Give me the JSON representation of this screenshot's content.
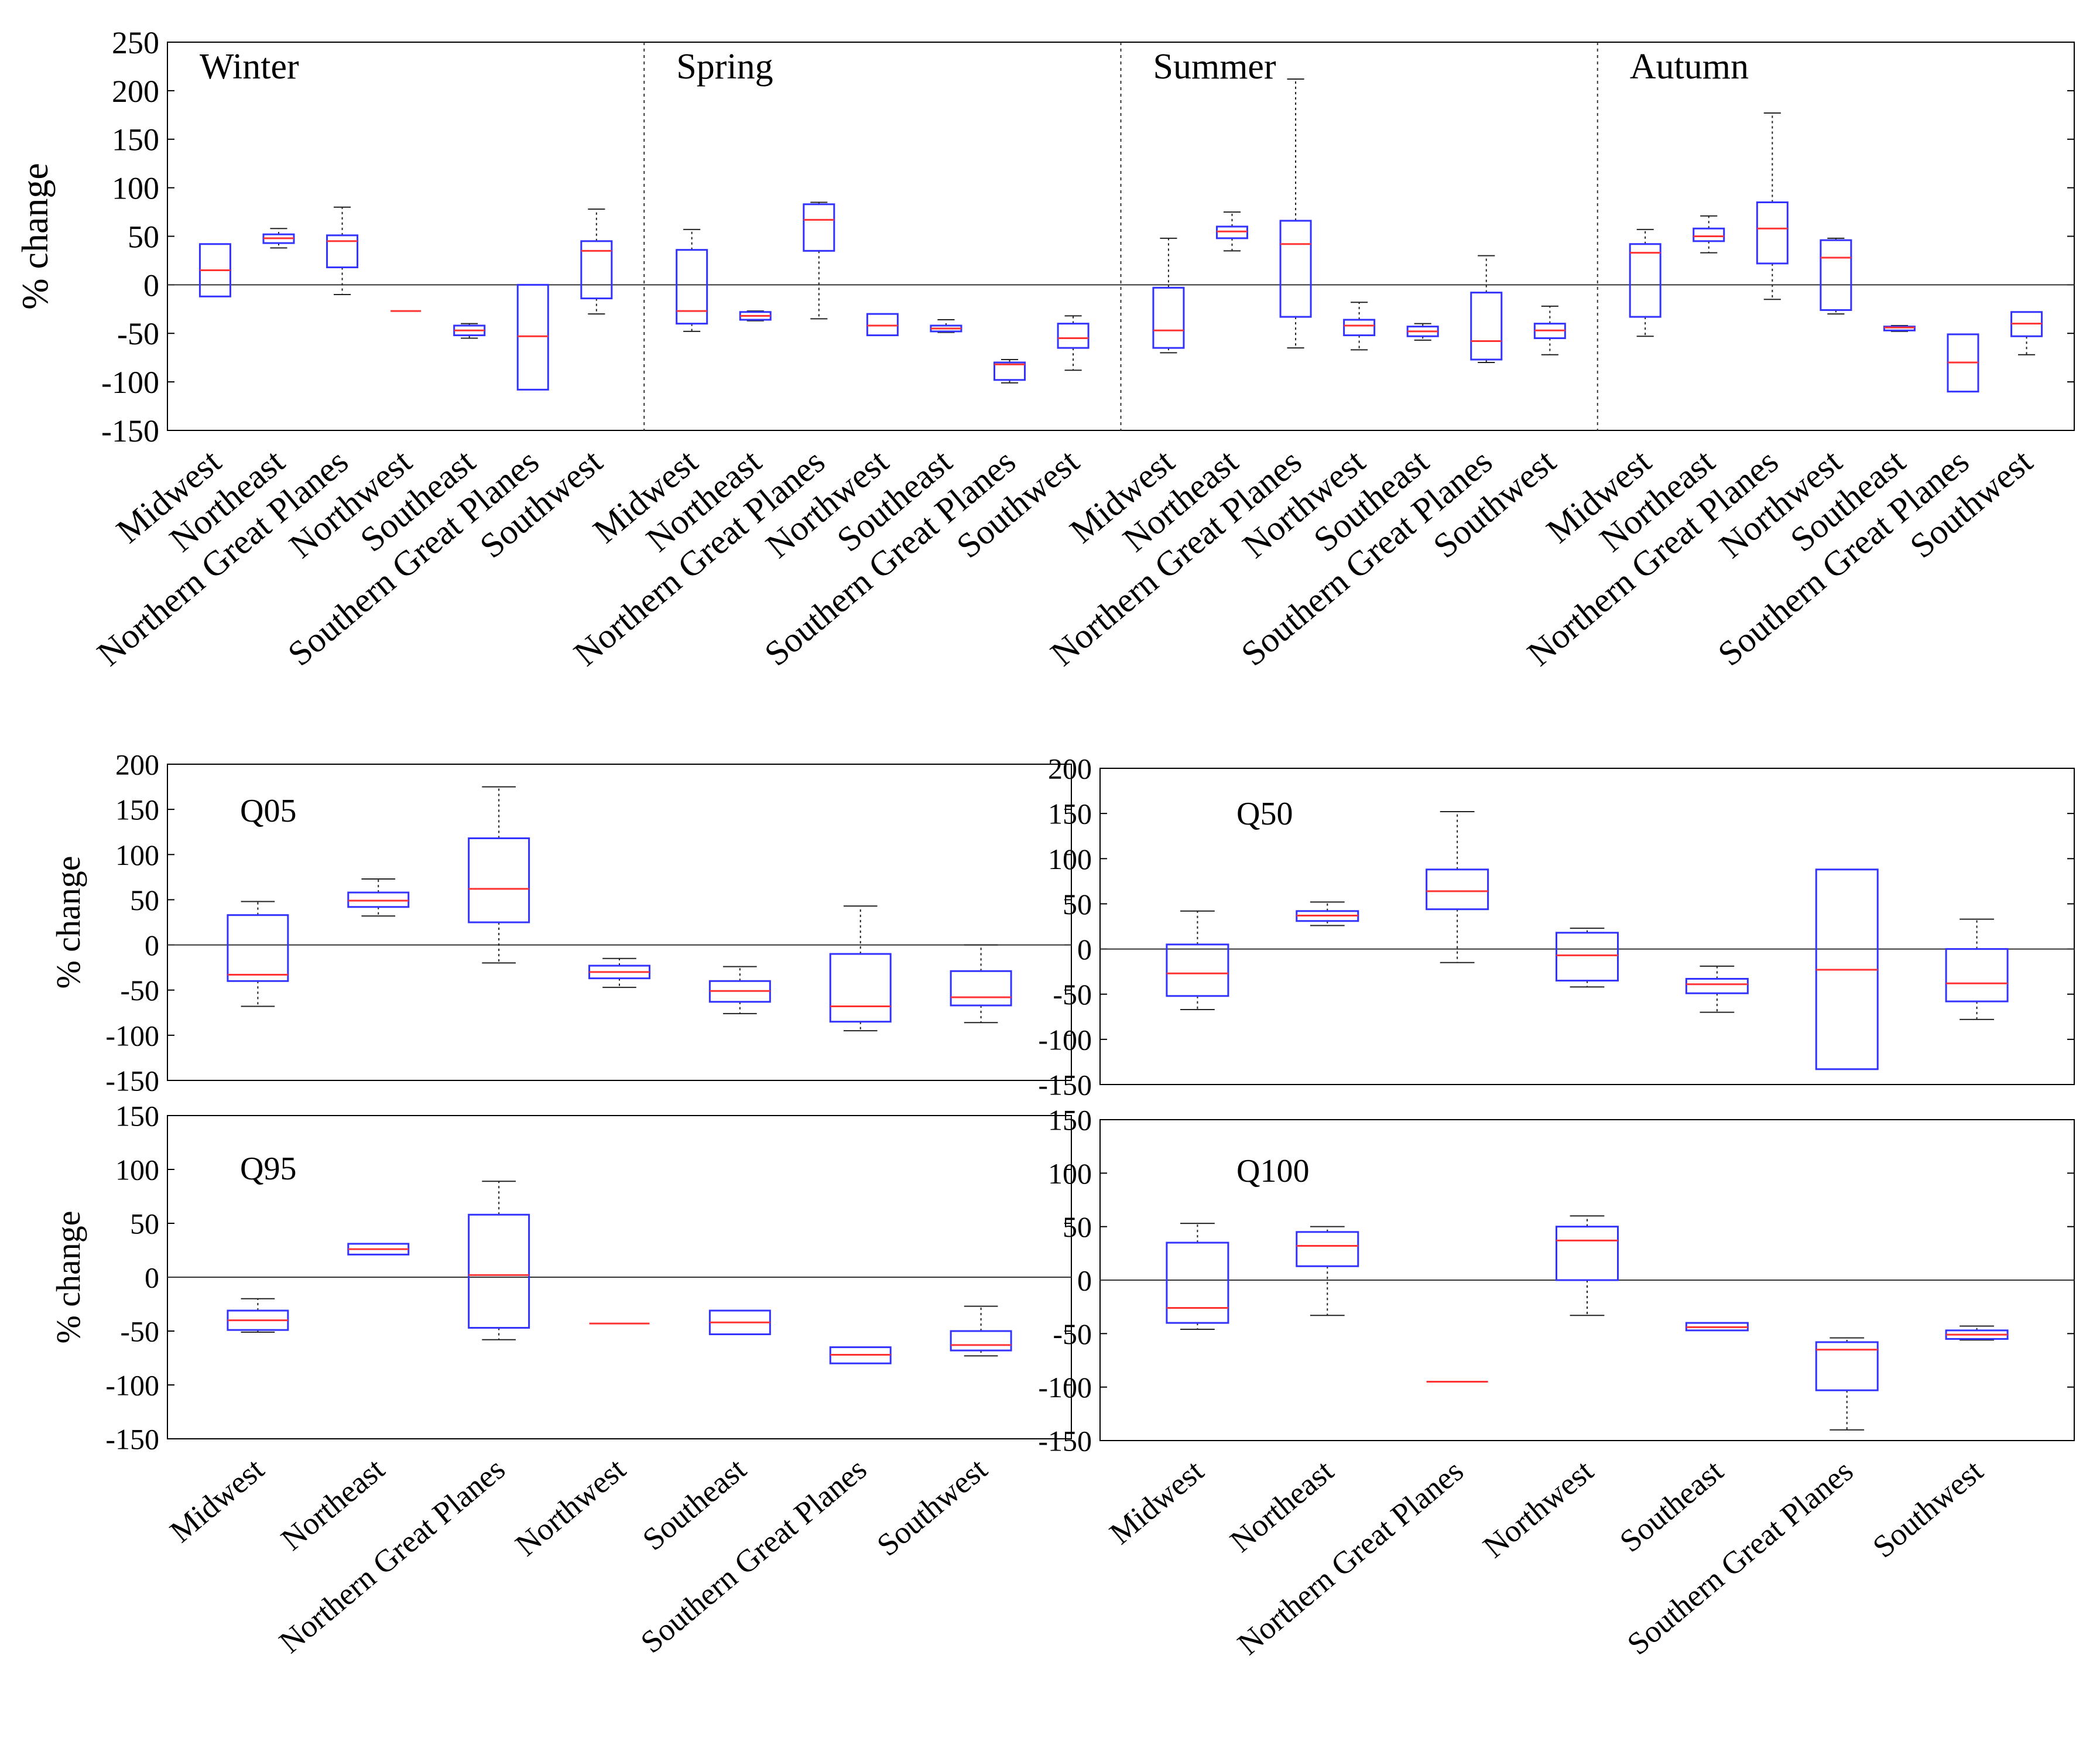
{
  "colors": {
    "box": "#3333ff",
    "median": "#ff3333",
    "whisker": "#222222",
    "axis": "#000000"
  },
  "chart_data": [
    {
      "id": "seasonal",
      "type": "boxplot",
      "ylabel": "% change",
      "ylim": [
        -150,
        250
      ],
      "yticks": [
        250,
        200,
        150,
        100,
        50,
        0,
        -50,
        -100,
        -150
      ],
      "zero_line": true,
      "groups": [
        {
          "name": "Winter",
          "regions": [
            {
              "category": "Midwest",
              "whisker_low": null,
              "q1": -12,
              "median": 15,
              "q3": 42,
              "whisker_high": null
            },
            {
              "category": "Northeast",
              "whisker_low": 38,
              "q1": 43,
              "median": 48,
              "q3": 52,
              "whisker_high": 58
            },
            {
              "category": "Northern Great Planes",
              "whisker_low": -10,
              "q1": 18,
              "median": 45,
              "q3": 51,
              "whisker_high": 80
            },
            {
              "category": "Northwest",
              "whisker_low": null,
              "q1": null,
              "median": -27,
              "q3": null,
              "whisker_high": null
            },
            {
              "category": "Southeast",
              "whisker_low": -55,
              "q1": -52,
              "median": -47,
              "q3": -42,
              "whisker_high": -40
            },
            {
              "category": "Southern Great Planes",
              "whisker_low": null,
              "q1": -108,
              "median": -53,
              "q3": 0,
              "whisker_high": null
            },
            {
              "category": "Southwest",
              "whisker_low": -30,
              "q1": -14,
              "median": 35,
              "q3": 45,
              "whisker_high": 78
            }
          ]
        },
        {
          "name": "Spring",
          "regions": [
            {
              "category": "Midwest",
              "whisker_low": -48,
              "q1": -40,
              "median": -27,
              "q3": 36,
              "whisker_high": 57
            },
            {
              "category": "Northeast",
              "whisker_low": -37,
              "q1": -36,
              "median": -32,
              "q3": -28,
              "whisker_high": -27
            },
            {
              "category": "Northern Great Planes",
              "whisker_low": -35,
              "q1": 35,
              "median": 67,
              "q3": 83,
              "whisker_high": 85
            },
            {
              "category": "Northwest",
              "whisker_low": null,
              "q1": -52,
              "median": -42,
              "q3": -30,
              "whisker_high": null
            },
            {
              "category": "Southeast",
              "whisker_low": -49,
              "q1": -48,
              "median": -45,
              "q3": -42,
              "whisker_high": -36
            },
            {
              "category": "Southern Great Planes",
              "whisker_low": -101,
              "q1": -98,
              "median": -82,
              "q3": -80,
              "whisker_high": -77
            },
            {
              "category": "Southwest",
              "whisker_low": -88,
              "q1": -65,
              "median": -55,
              "q3": -40,
              "whisker_high": -32
            }
          ]
        },
        {
          "name": "Summer",
          "regions": [
            {
              "category": "Midwest",
              "whisker_low": -70,
              "q1": -65,
              "median": -47,
              "q3": -3,
              "whisker_high": 48
            },
            {
              "category": "Northeast",
              "whisker_low": 35,
              "q1": 48,
              "median": 55,
              "q3": 60,
              "whisker_high": 75
            },
            {
              "category": "Northern Great Planes",
              "whisker_low": -65,
              "q1": -33,
              "median": 42,
              "q3": 66,
              "whisker_high": 212
            },
            {
              "category": "Northwest",
              "whisker_low": -67,
              "q1": -52,
              "median": -42,
              "q3": -36,
              "whisker_high": -18
            },
            {
              "category": "Southeast",
              "whisker_low": -57,
              "q1": -53,
              "median": -48,
              "q3": -43,
              "whisker_high": -40
            },
            {
              "category": "Southern Great Planes",
              "whisker_low": -80,
              "q1": -77,
              "median": -58,
              "q3": -8,
              "whisker_high": 30
            },
            {
              "category": "Southwest",
              "whisker_low": -72,
              "q1": -55,
              "median": -47,
              "q3": -40,
              "whisker_high": -22
            }
          ]
        },
        {
          "name": "Autumn",
          "regions": [
            {
              "category": "Midwest",
              "whisker_low": -53,
              "q1": -33,
              "median": 33,
              "q3": 42,
              "whisker_high": 57
            },
            {
              "category": "Northeast",
              "whisker_low": 33,
              "q1": 45,
              "median": 50,
              "q3": 58,
              "whisker_high": 71
            },
            {
              "category": "Northern Great Planes",
              "whisker_low": -15,
              "q1": 22,
              "median": 58,
              "q3": 85,
              "whisker_high": 177
            },
            {
              "category": "Northwest",
              "whisker_low": -30,
              "q1": -26,
              "median": 28,
              "q3": 46,
              "whisker_high": 48
            },
            {
              "category": "Southeast",
              "whisker_low": -48,
              "q1": -47,
              "median": -44,
              "q3": -43,
              "whisker_high": -42
            },
            {
              "category": "Southern Great Planes",
              "whisker_low": null,
              "q1": -110,
              "median": -80,
              "q3": -51,
              "whisker_high": null
            },
            {
              "category": "Southwest",
              "whisker_low": -72,
              "q1": -53,
              "median": -40,
              "q3": -28,
              "whisker_high": -28
            }
          ]
        }
      ]
    },
    {
      "id": "q05",
      "type": "boxplot",
      "title": "Q05",
      "ylabel": "% change",
      "ylim": [
        -150,
        200
      ],
      "yticks": [
        200,
        150,
        100,
        50,
        0,
        -50,
        -100,
        -150
      ],
      "zero_line": true,
      "show_xlabels": false,
      "regions": [
        {
          "category": "Midwest",
          "whisker_low": -68,
          "q1": -40,
          "median": -33,
          "q3": 33,
          "whisker_high": 48
        },
        {
          "category": "Northeast",
          "whisker_low": 32,
          "q1": 42,
          "median": 49,
          "q3": 58,
          "whisker_high": 73
        },
        {
          "category": "Northern Great Planes",
          "whisker_low": -20,
          "q1": 25,
          "median": 62,
          "q3": 118,
          "whisker_high": 175
        },
        {
          "category": "Northwest",
          "whisker_low": -47,
          "q1": -37,
          "median": -30,
          "q3": -23,
          "whisker_high": -15
        },
        {
          "category": "Southeast",
          "whisker_low": -76,
          "q1": -63,
          "median": -51,
          "q3": -40,
          "whisker_high": -24
        },
        {
          "category": "Southern Great Planes",
          "whisker_low": -95,
          "q1": -85,
          "median": -68,
          "q3": -10,
          "whisker_high": 43
        },
        {
          "category": "Southwest",
          "whisker_low": -86,
          "q1": -67,
          "median": -58,
          "q3": -29,
          "whisker_high": 0
        }
      ]
    },
    {
      "id": "q50",
      "type": "boxplot",
      "title": "Q50",
      "ylabel": "",
      "ylim": [
        -150,
        200
      ],
      "yticks": [
        200,
        150,
        100,
        50,
        0,
        -50,
        -100,
        -150
      ],
      "zero_line": true,
      "show_xlabels": false,
      "regions": [
        {
          "category": "Midwest",
          "whisker_low": -67,
          "q1": -52,
          "median": -27,
          "q3": 5,
          "whisker_high": 42
        },
        {
          "category": "Northeast",
          "whisker_low": 26,
          "q1": 31,
          "median": 37,
          "q3": 42,
          "whisker_high": 52
        },
        {
          "category": "Northern Great Planes",
          "whisker_low": -15,
          "q1": 44,
          "median": 64,
          "q3": 88,
          "whisker_high": 152
        },
        {
          "category": "Northwest",
          "whisker_low": -42,
          "q1": -35,
          "median": -7,
          "q3": 18,
          "whisker_high": 23
        },
        {
          "category": "Southeast",
          "whisker_low": -70,
          "q1": -49,
          "median": -39,
          "q3": -33,
          "whisker_high": -19
        },
        {
          "category": "Southern Great Planes",
          "whisker_low": null,
          "q1": -133,
          "median": -23,
          "q3": 88,
          "whisker_high": null
        },
        {
          "category": "Southwest",
          "whisker_low": -78,
          "q1": -58,
          "median": -38,
          "q3": 0,
          "whisker_high": 33
        }
      ]
    },
    {
      "id": "q95",
      "type": "boxplot",
      "title": "Q95",
      "ylabel": "% change",
      "ylim": [
        -150,
        150
      ],
      "yticks": [
        150,
        100,
        50,
        0,
        -50,
        -100,
        -150
      ],
      "zero_line": true,
      "show_xlabels": true,
      "regions": [
        {
          "category": "Midwest",
          "whisker_low": -51,
          "q1": -49,
          "median": -40,
          "q3": -31,
          "whisker_high": -20
        },
        {
          "category": "Northeast",
          "whisker_low": null,
          "q1": 21,
          "median": 26,
          "q3": 31,
          "whisker_high": null
        },
        {
          "category": "Northern Great Planes",
          "whisker_low": -58,
          "q1": -47,
          "median": 2,
          "q3": 58,
          "whisker_high": 89
        },
        {
          "category": "Northwest",
          "whisker_low": null,
          "q1": null,
          "median": -43,
          "q3": null,
          "whisker_high": null
        },
        {
          "category": "Southeast",
          "whisker_low": null,
          "q1": -53,
          "median": -42,
          "q3": -31,
          "whisker_high": null
        },
        {
          "category": "Southern Great Planes",
          "whisker_low": null,
          "q1": -80,
          "median": -72,
          "q3": -65,
          "whisker_high": null
        },
        {
          "category": "Southwest",
          "whisker_low": -73,
          "q1": -68,
          "median": -63,
          "q3": -50,
          "whisker_high": -27
        }
      ]
    },
    {
      "id": "q100",
      "type": "boxplot",
      "title": "Q100",
      "ylabel": "",
      "ylim": [
        -150,
        150
      ],
      "yticks": [
        150,
        100,
        50,
        0,
        -50,
        -100,
        -150
      ],
      "zero_line": true,
      "show_xlabels": true,
      "regions": [
        {
          "category": "Midwest",
          "whisker_low": -46,
          "q1": -40,
          "median": -26,
          "q3": 35,
          "whisker_high": 53
        },
        {
          "category": "Northeast",
          "whisker_low": -33,
          "q1": 13,
          "median": 32,
          "q3": 45,
          "whisker_high": 50
        },
        {
          "category": "Northern Great Planes",
          "whisker_low": null,
          "q1": null,
          "median": -95,
          "q3": null,
          "whisker_high": null
        },
        {
          "category": "Northwest",
          "whisker_low": -33,
          "q1": 0,
          "median": 37,
          "q3": 50,
          "whisker_high": 60
        },
        {
          "category": "Southeast",
          "whisker_low": null,
          "q1": -47,
          "median": -44,
          "q3": -40,
          "whisker_high": null
        },
        {
          "category": "Southern Great Planes",
          "whisker_low": -140,
          "q1": -103,
          "median": -65,
          "q3": -58,
          "whisker_high": -54
        },
        {
          "category": "Southwest",
          "whisker_low": -56,
          "q1": -55,
          "median": -51,
          "q3": -47,
          "whisker_high": -43
        }
      ]
    }
  ]
}
